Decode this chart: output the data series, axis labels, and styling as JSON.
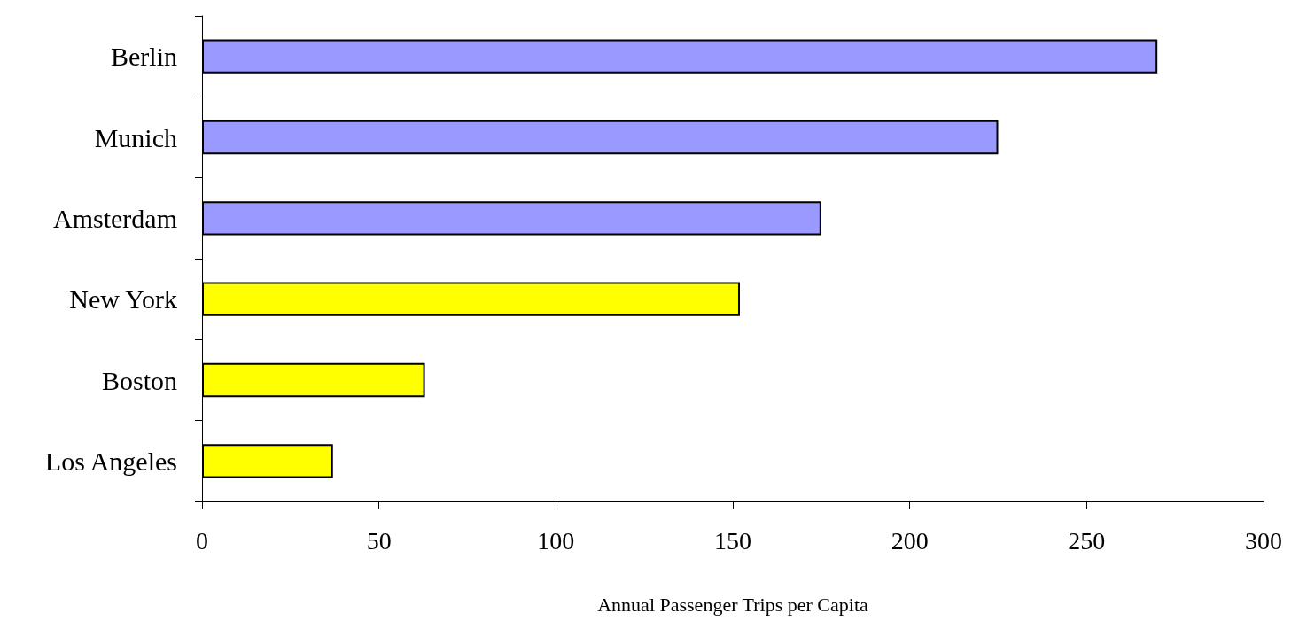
{
  "chart_data": {
    "type": "bar",
    "orientation": "horizontal",
    "xlabel": "Annual Passenger Trips per Capita",
    "categories": [
      "Berlin",
      "Munich",
      "Amsterdam",
      "New York",
      "Boston",
      "Los Angeles"
    ],
    "values": [
      270,
      225,
      175,
      152,
      63,
      37
    ],
    "colors": [
      "#9999ff",
      "#9999ff",
      "#9999ff",
      "#ffff00",
      "#ffff00",
      "#ffff00"
    ],
    "xlim": [
      0,
      300
    ],
    "xticks": [
      0,
      50,
      100,
      150,
      200,
      250,
      300
    ],
    "grid": false
  }
}
